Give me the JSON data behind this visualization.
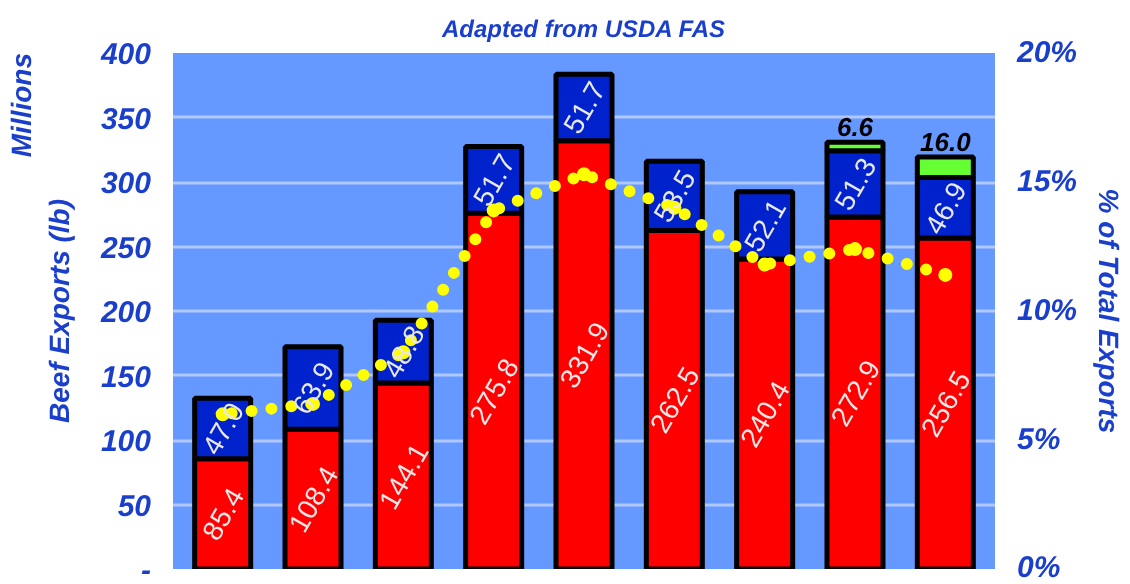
{
  "chart_data": {
    "type": "bar",
    "title": "Adapted from USDA FAS",
    "ylabel": "Beef Exports (lb)",
    "y2label": "% of Total Exports",
    "annotations": [
      "Millions"
    ],
    "categories": [
      null,
      null,
      null,
      null,
      null,
      null,
      null,
      null,
      null
    ],
    "stacked": true,
    "grid": "y",
    "ylim": [
      0,
      400
    ],
    "yticks": [
      {
        "value": 0,
        "label": "-"
      },
      50,
      100,
      150,
      200,
      250,
      300,
      350,
      400
    ],
    "y2lim": [
      0,
      20
    ],
    "y2ticks": [
      {
        "value": 0,
        "label": "0%"
      },
      {
        "value": 5,
        "label": "5%"
      },
      {
        "value": 10,
        "label": "10%"
      },
      {
        "value": 15,
        "label": "15%"
      },
      {
        "value": 20,
        "label": "20%"
      }
    ],
    "series": [
      {
        "color": "#ff0000",
        "values": [
          85.4,
          108.4,
          144.1,
          275.8,
          331.9,
          262.5,
          240.4,
          272.9,
          256.5
        ],
        "value_labels": [
          "85.4",
          "108.4",
          "144.1",
          "275.8",
          "331.9",
          "262.5",
          "240.4",
          "272.9",
          "256.5"
        ]
      },
      {
        "color": "#0022cc",
        "values": [
          47.0,
          63.9,
          48.8,
          51.7,
          51.7,
          53.5,
          52.1,
          51.3,
          46.9
        ],
        "value_labels": [
          "47.0",
          "63.9",
          "48.8",
          "51.7",
          "51.7",
          "53.5",
          "52.1",
          "51.3",
          "46.9"
        ]
      },
      {
        "color": "#66ff33",
        "values": [
          null,
          null,
          null,
          null,
          null,
          null,
          null,
          6.6,
          16.0
        ],
        "value_labels": [
          null,
          null,
          null,
          null,
          null,
          null,
          null,
          "6.6",
          "16.0"
        ]
      },
      {
        "type": "line",
        "axis": "y2",
        "color": "#ffff00",
        "line_style": "dotted",
        "marker": "circle",
        "values": [
          6.0,
          6.4,
          8.4,
          13.9,
          15.3,
          14.0,
          11.8,
          12.4,
          11.4
        ]
      }
    ]
  }
}
